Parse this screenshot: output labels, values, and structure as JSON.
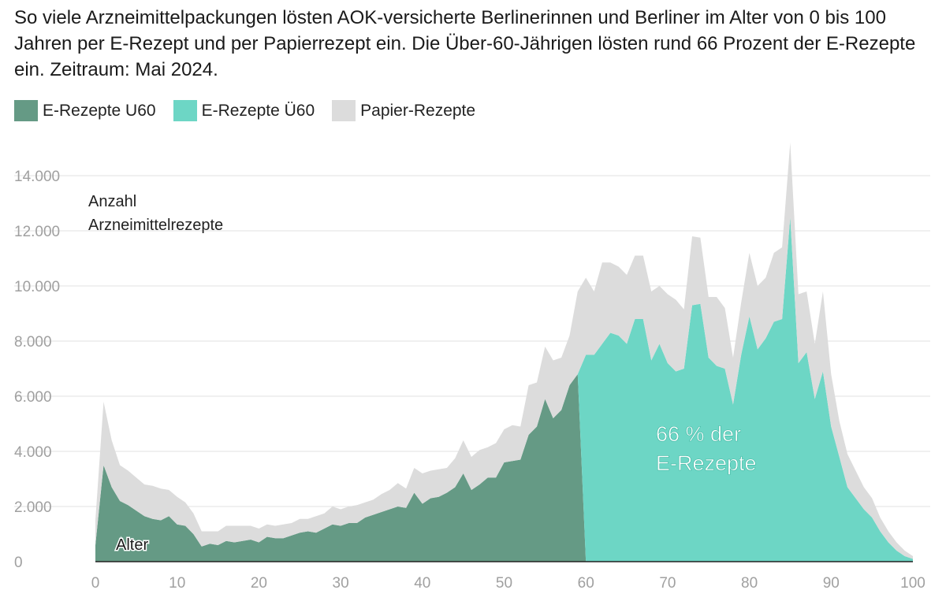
{
  "title": "So viele Arzneimittelpackungen lösten AOK-versicherte Berlinerinnen und Berliner im Alter von 0 bis 100 Jahren per E-Rezept und per Papierrezept ein. Die Über-60-Jährigen lösten rund 66 Prozent der E-Rezepte ein. Zeitraum: Mai 2024.",
  "legend": [
    {
      "label": "E-Rezepte U60",
      "color": "#659a85"
    },
    {
      "label": "E-Rezepte Ü60",
      "color": "#6dd6c5"
    },
    {
      "label": "Papier-Rezepte",
      "color": "#dcdcdc"
    }
  ],
  "annotation": {
    "line1": "66 % der",
    "line2": "E-Rezepte"
  },
  "chart_data": {
    "type": "area",
    "stacked": true,
    "xlabel": "Alter",
    "ylabel_lines": [
      "Anzahl",
      "Arzneimittelrezepte"
    ],
    "xlim": [
      0,
      100
    ],
    "ylim": [
      0,
      15000
    ],
    "x_ticks": [
      0,
      10,
      20,
      30,
      40,
      50,
      60,
      70,
      80,
      90,
      100
    ],
    "y_ticks": [
      0,
      2000,
      4000,
      6000,
      8000,
      10000,
      12000,
      14000
    ],
    "y_tick_labels": [
      "0",
      "2.000",
      "4.000",
      "6.000",
      "8.000",
      "10.000",
      "12.000",
      "14.000"
    ],
    "grid": true,
    "legend_position": "top-left",
    "x": [
      0,
      1,
      2,
      3,
      4,
      5,
      6,
      7,
      8,
      9,
      10,
      11,
      12,
      13,
      14,
      15,
      16,
      17,
      18,
      19,
      20,
      21,
      22,
      23,
      24,
      25,
      26,
      27,
      28,
      29,
      30,
      31,
      32,
      33,
      34,
      35,
      36,
      37,
      38,
      39,
      40,
      41,
      42,
      43,
      44,
      45,
      46,
      47,
      48,
      49,
      50,
      51,
      52,
      53,
      54,
      55,
      56,
      57,
      58,
      59,
      60,
      61,
      62,
      63,
      64,
      65,
      66,
      67,
      68,
      69,
      70,
      71,
      72,
      73,
      74,
      75,
      76,
      77,
      78,
      79,
      80,
      81,
      82,
      83,
      84,
      85,
      86,
      87,
      88,
      89,
      90,
      91,
      92,
      93,
      94,
      95,
      96,
      97,
      98,
      99,
      100
    ],
    "series": [
      {
        "name": "E-Rezepte U60",
        "color": "#659a85",
        "values": [
          600,
          3500,
          2700,
          2200,
          2050,
          1850,
          1650,
          1550,
          1500,
          1650,
          1350,
          1300,
          1000,
          550,
          650,
          600,
          750,
          700,
          750,
          800,
          700,
          900,
          850,
          850,
          950,
          1050,
          1100,
          1050,
          1200,
          1350,
          1300,
          1400,
          1400,
          1600,
          1700,
          1800,
          1900,
          2000,
          1950,
          2500,
          2100,
          2300,
          2350,
          2500,
          2700,
          3200,
          2600,
          2800,
          3050,
          3050,
          3600,
          3650,
          3700,
          4600,
          4900,
          5900,
          5200,
          5500,
          6400,
          6800,
          0,
          0,
          0,
          0,
          0,
          0,
          0,
          0,
          0,
          0,
          0,
          0,
          0,
          0,
          0,
          0,
          0,
          0,
          0,
          0,
          0,
          0,
          0,
          0,
          0,
          0,
          0,
          0,
          0,
          0,
          0,
          0,
          0,
          0,
          0,
          0,
          0,
          0,
          0,
          0,
          0
        ]
      },
      {
        "name": "E-Rezepte Ü60",
        "color": "#6dd6c5",
        "values": [
          0,
          0,
          0,
          0,
          0,
          0,
          0,
          0,
          0,
          0,
          0,
          0,
          0,
          0,
          0,
          0,
          0,
          0,
          0,
          0,
          0,
          0,
          0,
          0,
          0,
          0,
          0,
          0,
          0,
          0,
          0,
          0,
          0,
          0,
          0,
          0,
          0,
          0,
          0,
          0,
          0,
          0,
          0,
          0,
          0,
          0,
          0,
          0,
          0,
          0,
          0,
          0,
          0,
          0,
          0,
          0,
          0,
          0,
          0,
          0,
          7500,
          7500,
          7900,
          8300,
          8200,
          7900,
          8800,
          8800,
          7300,
          7900,
          7200,
          6900,
          7000,
          9300,
          9350,
          7400,
          7100,
          7000,
          5700,
          7500,
          8900,
          7700,
          8100,
          8700,
          8800,
          12500,
          7200,
          7600,
          5900,
          6900,
          4900,
          3800,
          2700,
          2300,
          1900,
          1600,
          1100,
          700,
          400,
          200,
          100
        ]
      },
      {
        "name": "Papier-Rezepte",
        "color": "#dcdcdc",
        "values": [
          900,
          2300,
          1700,
          1300,
          1250,
          1200,
          1150,
          1200,
          1150,
          950,
          1000,
          850,
          750,
          550,
          450,
          500,
          550,
          600,
          550,
          500,
          500,
          450,
          450,
          500,
          450,
          500,
          450,
          600,
          550,
          650,
          600,
          600,
          650,
          550,
          550,
          650,
          700,
          850,
          700,
          900,
          1100,
          1000,
          1000,
          900,
          1050,
          1200,
          1200,
          1250,
          1100,
          1250,
          1200,
          1300,
          1200,
          1800,
          1600,
          1900,
          2100,
          1900,
          1800,
          3000,
          2800,
          2300,
          2950,
          2550,
          2500,
          2500,
          2300,
          2300,
          2500,
          2100,
          2500,
          2600,
          2150,
          2500,
          2400,
          2200,
          2500,
          2200,
          1700,
          1900,
          2300,
          2300,
          2200,
          2500,
          2600,
          2700,
          2500,
          2200,
          2000,
          2900,
          1900,
          1300,
          1200,
          1000,
          800,
          700,
          500,
          400,
          300,
          200,
          100
        ]
      }
    ]
  }
}
